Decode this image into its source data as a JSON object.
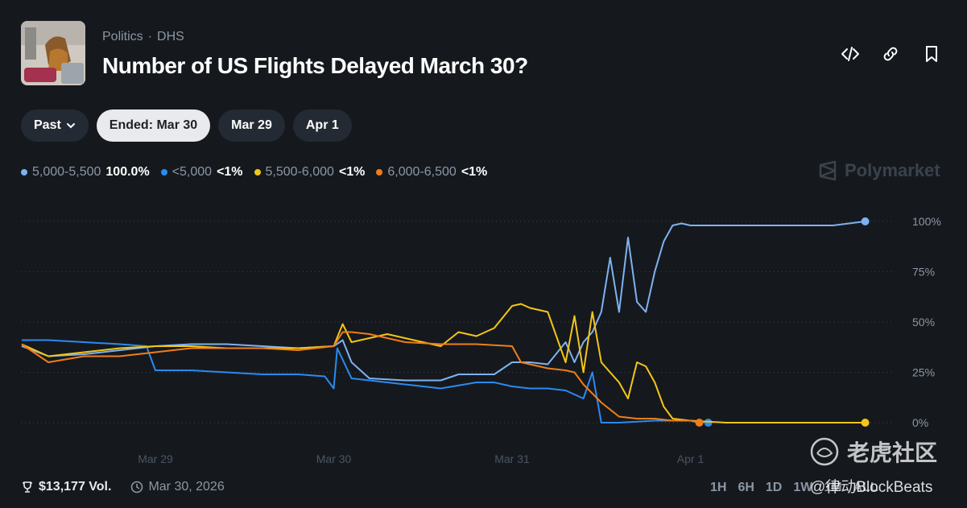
{
  "header": {
    "category": "Politics",
    "subcategory": "DHS",
    "title": "Number of US Flights Delayed March 30?"
  },
  "icons": {
    "embed": "code-icon",
    "link": "link-icon",
    "bookmark": "bookmark-icon"
  },
  "tabs": [
    {
      "label": "Past",
      "active": false,
      "dropdown": true
    },
    {
      "label": "Ended: Mar 30",
      "active": true
    },
    {
      "label": "Mar 29",
      "active": false
    },
    {
      "label": "Apr 1",
      "active": false
    }
  ],
  "legend": [
    {
      "name": "5,000-5,500",
      "value": "100.0%",
      "color": "#7fb2f0"
    },
    {
      "name": "<5,000",
      "value": "<1%",
      "color": "#2b8af0"
    },
    {
      "name": "5,500-6,000",
      "value": "<1%",
      "color": "#f5c518"
    },
    {
      "name": "6,000-6,500",
      "value": "<1%",
      "color": "#f07d1a"
    }
  ],
  "brand": "Polymarket",
  "footer": {
    "volume": "$13,177 Vol.",
    "date": "Mar 30, 2026",
    "ranges": [
      "1H",
      "6H",
      "1D",
      "1W",
      "1M",
      "ALL"
    ]
  },
  "watermark": {
    "line1": "老虎社区",
    "line2": "@律动BlockBeats"
  },
  "chart_data": {
    "type": "line",
    "x_ticks": [
      "Mar 29",
      "Mar 30",
      "Mar 31",
      "Apr 1"
    ],
    "x_tick_positions": [
      0,
      1,
      2,
      3
    ],
    "y_ticks": [
      "100%",
      "75%",
      "50%",
      "25%",
      "0%"
    ],
    "ylim": [
      0,
      100
    ],
    "xlim": [
      -0.75,
      4
    ],
    "series": [
      {
        "name": "5,000-5,500",
        "color": "#7fb2f0",
        "x": [
          -0.75,
          -0.6,
          -0.4,
          -0.2,
          0,
          0.2,
          0.4,
          0.6,
          0.8,
          1.0,
          1.05,
          1.1,
          1.2,
          1.4,
          1.6,
          1.7,
          1.8,
          1.9,
          2.0,
          2.1,
          2.2,
          2.3,
          2.35,
          2.4,
          2.45,
          2.5,
          2.55,
          2.6,
          2.65,
          2.7,
          2.75,
          2.8,
          2.85,
          2.9,
          2.95,
          3.0,
          3.2,
          3.4,
          3.6,
          3.8,
          3.98
        ],
        "y": [
          38,
          33,
          34,
          36,
          38,
          39,
          39,
          38,
          37,
          38,
          41,
          30,
          22,
          21,
          21,
          24,
          24,
          24,
          30,
          30,
          29,
          40,
          30,
          40,
          45,
          55,
          82,
          55,
          92,
          60,
          55,
          75,
          90,
          98,
          99,
          98,
          98,
          98,
          98,
          98,
          100
        ]
      },
      {
        "name": "<5,000",
        "color": "#2b8af0",
        "x": [
          -0.75,
          -0.6,
          -0.4,
          -0.2,
          -0.05,
          0,
          0.2,
          0.4,
          0.6,
          0.8,
          0.95,
          1.0,
          1.02,
          1.1,
          1.2,
          1.4,
          1.6,
          1.8,
          1.9,
          2.0,
          2.1,
          2.2,
          2.3,
          2.4,
          2.45,
          2.5,
          2.55,
          2.6,
          2.8,
          3.0,
          3.1
        ],
        "y": [
          41,
          41,
          40,
          39,
          38,
          26,
          26,
          25,
          24,
          24,
          23,
          17,
          37,
          22,
          21,
          19,
          17,
          20,
          20,
          18,
          17,
          17,
          16,
          12,
          25,
          0,
          0,
          0,
          1,
          1,
          0
        ]
      },
      {
        "name": "5,500-6,000",
        "color": "#f5c518",
        "x": [
          -0.75,
          -0.6,
          -0.4,
          -0.2,
          0,
          0.2,
          0.4,
          0.6,
          0.8,
          1.0,
          1.05,
          1.1,
          1.3,
          1.4,
          1.5,
          1.6,
          1.7,
          1.8,
          1.9,
          2.0,
          2.05,
          2.1,
          2.2,
          2.3,
          2.35,
          2.4,
          2.45,
          2.5,
          2.55,
          2.6,
          2.65,
          2.7,
          2.75,
          2.8,
          2.85,
          2.9,
          3.0,
          3.2,
          3.4,
          3.6,
          3.98
        ],
        "y": [
          39,
          33,
          35,
          37,
          38,
          38,
          37,
          37,
          37,
          38,
          49,
          40,
          44,
          42,
          40,
          38,
          45,
          43,
          47,
          58,
          59,
          57,
          55,
          30,
          53,
          25,
          55,
          30,
          25,
          20,
          12,
          30,
          28,
          20,
          8,
          2,
          1,
          0,
          0,
          0,
          0
        ]
      },
      {
        "name": "6,000-6,500",
        "color": "#f07d1a",
        "x": [
          -0.75,
          -0.6,
          -0.4,
          -0.2,
          0,
          0.2,
          0.4,
          0.6,
          0.8,
          1.0,
          1.05,
          1.1,
          1.2,
          1.4,
          1.6,
          1.8,
          2.0,
          2.05,
          2.1,
          2.2,
          2.3,
          2.35,
          2.4,
          2.5,
          2.6,
          2.7,
          2.8,
          2.9,
          3.0,
          3.05
        ],
        "y": [
          39,
          30,
          33,
          33,
          35,
          37,
          37,
          37,
          36,
          38,
          45,
          45,
          44,
          40,
          39,
          39,
          38,
          30,
          29,
          27,
          26,
          25,
          19,
          10,
          3,
          2,
          2,
          1,
          1,
          0
        ]
      }
    ]
  }
}
